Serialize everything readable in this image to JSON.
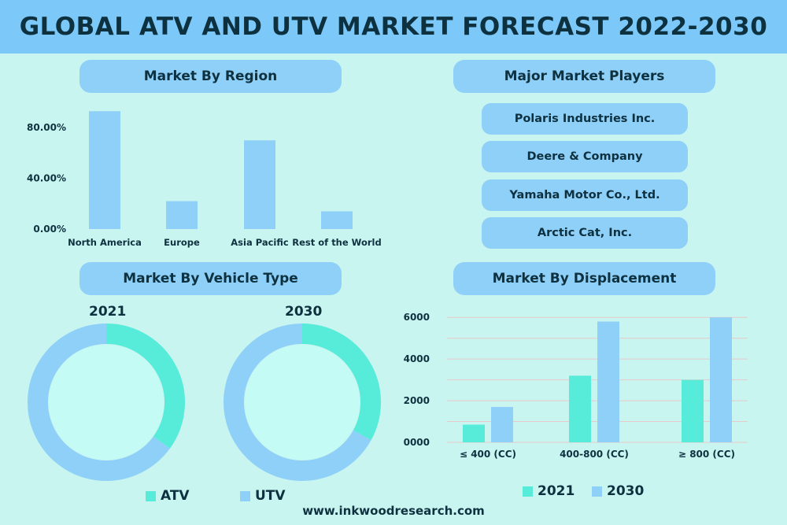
{
  "title": "GLOBAL ATV AND UTV MARKET FORECAST 2022-2030",
  "sections": {
    "region": "Market By Region",
    "players": "Major Market Players",
    "vehicle": "Market By Vehicle Type",
    "displacement": "Market By Displacement"
  },
  "players": [
    "Polaris Industries Inc.",
    "Deere & Company",
    "Yamaha Motor Co., Ltd.",
    "Arctic Cat, Inc."
  ],
  "colors": {
    "bar_blue": "#8fd0f9",
    "teal": "#57ebd9",
    "background": "#c9f5f0",
    "title_bar": "#7cc8f8",
    "text": "#0e3140"
  },
  "footer": "www.inkwoodresearch.com",
  "chart_data": [
    {
      "type": "bar",
      "categories": [
        "North America",
        "Europe",
        "Asia Pacific",
        "Rest of the World"
      ],
      "values": [
        93,
        22,
        70,
        14
      ],
      "yticks": [
        "0.00%",
        "40.00%",
        "80.00%"
      ],
      "ytick_values": [
        0,
        40,
        80
      ],
      "ylim": [
        0,
        100
      ],
      "grid": false
    },
    {
      "type": "pie",
      "variant": "donut",
      "label": "2021",
      "slices": [
        {
          "name": "ATV",
          "value": 35
        },
        {
          "name": "UTV",
          "value": 65
        }
      ]
    },
    {
      "type": "pie",
      "variant": "donut",
      "label": "2030",
      "slices": [
        {
          "name": "ATV",
          "value": 33
        },
        {
          "name": "UTV",
          "value": 67
        }
      ]
    },
    {
      "type": "bar",
      "categories": [
        "≤ 400 (CC)",
        "400-800 (CC)",
        "≥ 800 (CC)"
      ],
      "series": [
        {
          "name": "2021",
          "values": [
            850,
            3200,
            3000
          ]
        },
        {
          "name": "2030",
          "values": [
            1700,
            5800,
            6000
          ]
        }
      ],
      "yticks": [
        "0000",
        "2000",
        "4000",
        "6000"
      ],
      "ytick_values": [
        0,
        2000,
        4000,
        6000
      ],
      "ylim": [
        0,
        6500
      ],
      "grid": true,
      "legend": "bottom"
    }
  ],
  "legends": {
    "vehicle": [
      "ATV",
      "UTV"
    ],
    "displacement": [
      "2021",
      "2030"
    ]
  }
}
